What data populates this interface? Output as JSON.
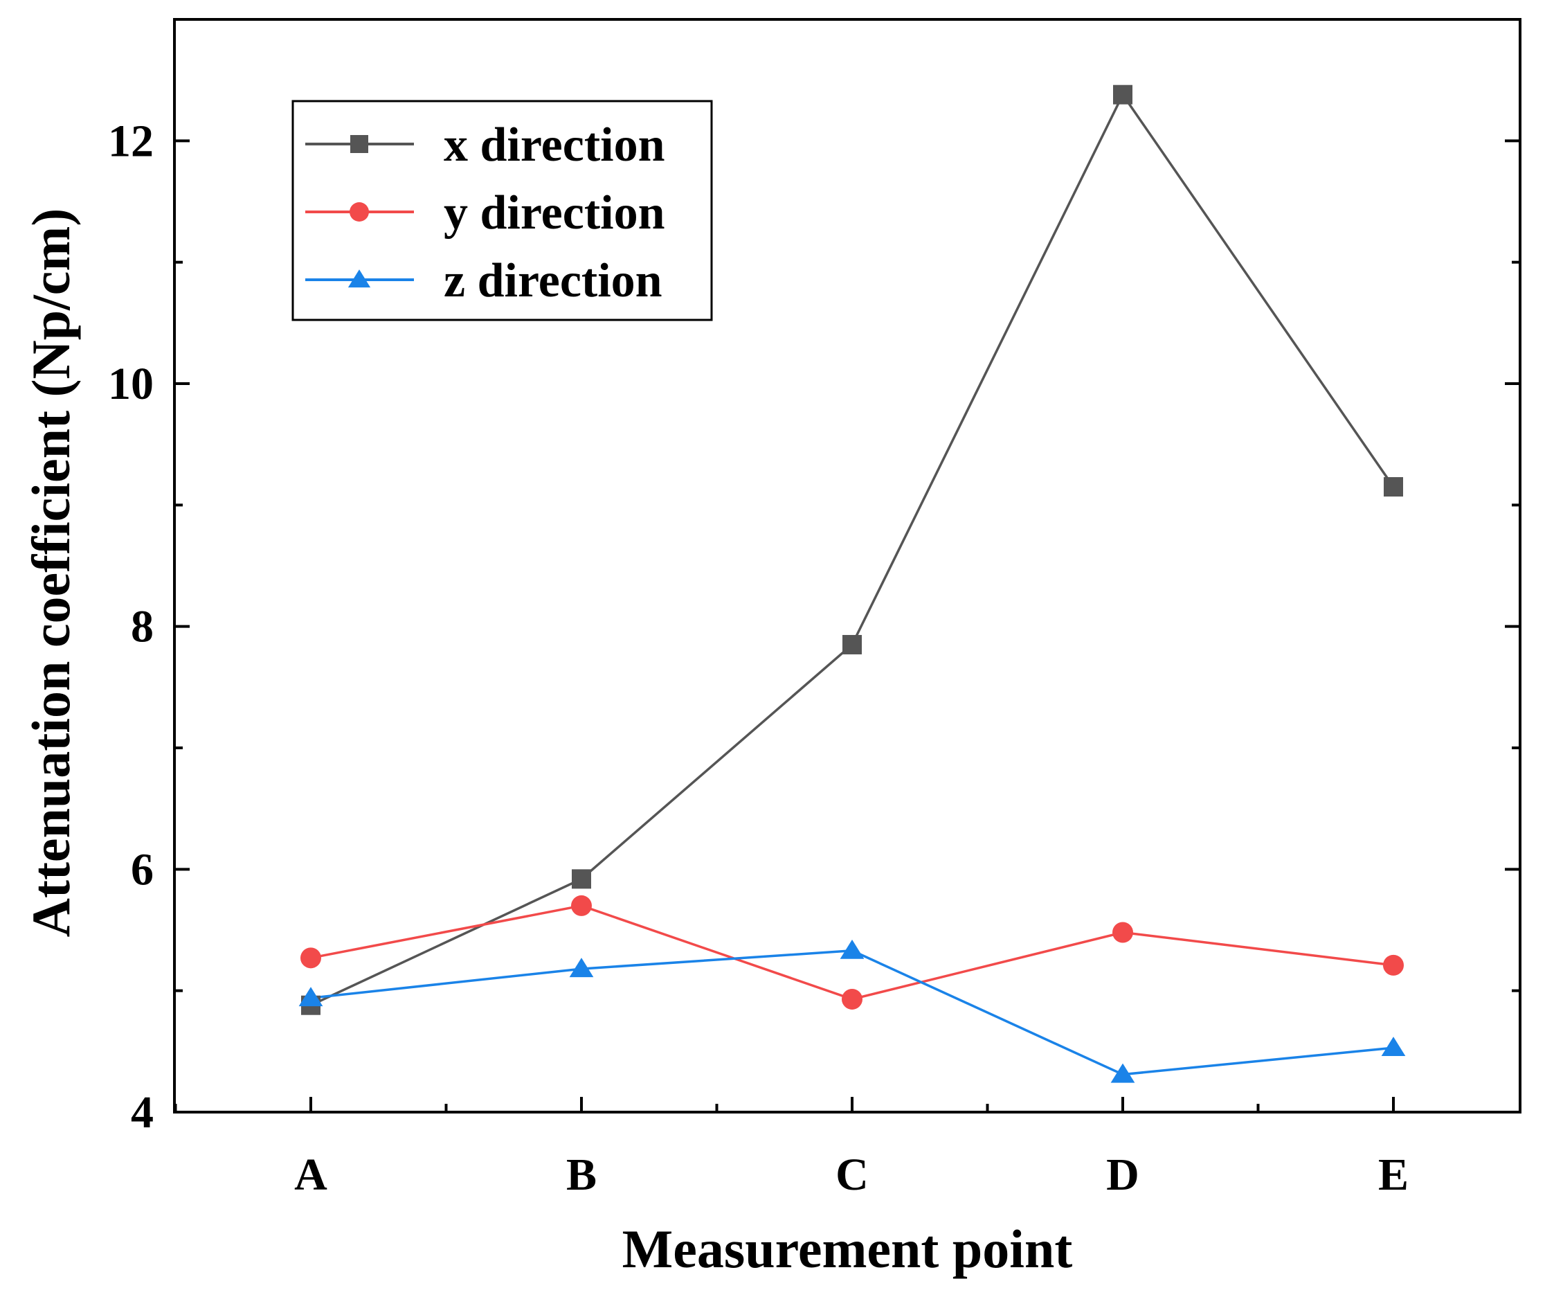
{
  "chart_data": {
    "type": "line",
    "title": "",
    "xlabel": "Measurement point",
    "ylabel": "Attenuation coefficient (Np/cm)",
    "categories": [
      "A",
      "B",
      "C",
      "D",
      "E"
    ],
    "ylim": [
      4,
      13
    ],
    "yticks": [
      4,
      6,
      8,
      10,
      12
    ],
    "grid": false,
    "legend_position": "top-left",
    "series": [
      {
        "name": "x direction",
        "color": "#555555",
        "marker": "square",
        "values": [
          4.88,
          5.92,
          7.85,
          12.38,
          9.15
        ]
      },
      {
        "name": "y direction",
        "color": "#f24a4a",
        "marker": "circle",
        "values": [
          5.27,
          5.7,
          4.93,
          5.48,
          5.21
        ]
      },
      {
        "name": "z direction",
        "color": "#1a83e8",
        "marker": "triangle",
        "values": [
          4.94,
          5.18,
          5.33,
          4.31,
          4.53
        ]
      }
    ]
  }
}
